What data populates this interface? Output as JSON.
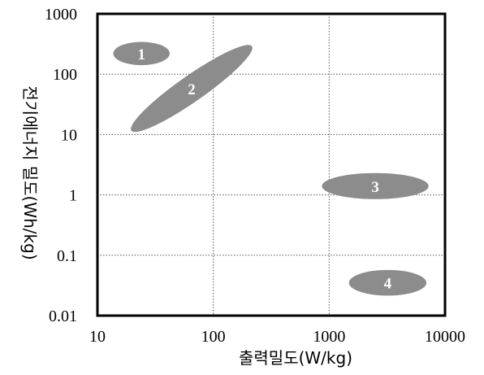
{
  "chart_data": {
    "type": "scatter",
    "title": "",
    "xlabel": "출력밀도(W/kg)",
    "ylabel": "전기에너지 밀도(Wh/kg)",
    "x_scale": "log",
    "y_scale": "log",
    "xlim": [
      10,
      10000
    ],
    "ylim": [
      0.01,
      1000
    ],
    "x_ticks": [
      "10",
      "100",
      "1000",
      "10000"
    ],
    "y_ticks": [
      "0.01",
      "0.1",
      "1",
      "10",
      "100",
      "1000"
    ],
    "grid": true,
    "regions": [
      {
        "label": "1",
        "x_center": 24,
        "y_center": 220,
        "x_range": [
          14,
          43
        ],
        "y_range": [
          140,
          340
        ]
      },
      {
        "label": "2",
        "x_center": 65,
        "y_center": 58,
        "x_range": [
          20,
          220
        ],
        "y_range": [
          10,
          250
        ]
      },
      {
        "label": "3",
        "x_center": 2500,
        "y_center": 1.4,
        "x_range": [
          900,
          7500
        ],
        "y_range": [
          0.85,
          2.3
        ]
      },
      {
        "label": "4",
        "x_center": 3200,
        "y_center": 0.035,
        "x_range": [
          1500,
          7000
        ],
        "y_range": [
          0.021,
          0.056
        ]
      }
    ],
    "colors": {
      "region_fill": "#8c8c8c",
      "grid": "#555555",
      "frame": "#000000"
    }
  }
}
